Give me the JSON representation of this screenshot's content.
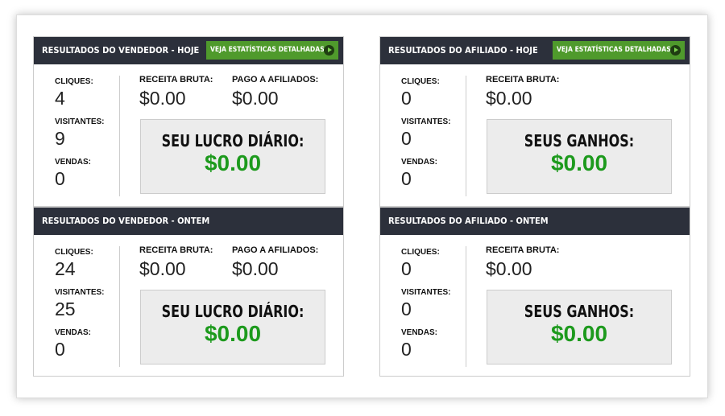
{
  "panels": [
    {
      "title": "RESULTADOS DO VENDEDOR - HOJE",
      "button": "VEJA ESTATÍSTICAS DETALHADAS",
      "stats": [
        {
          "label": "CLIQUES:",
          "value": "4"
        },
        {
          "label": "VISITANTES:",
          "value": "9"
        },
        {
          "label": "VENDAS:",
          "value": "0"
        }
      ],
      "revenue": [
        {
          "label": "RECEITA BRUTA:",
          "value": "$0.00"
        },
        {
          "label": "PAGO A AFILIADOS:",
          "value": "$0.00"
        }
      ],
      "box": {
        "label": "SEU LUCRO DIÁRIO:",
        "value": "$0.00"
      }
    },
    {
      "title": "RESULTADOS DO AFILIADO - HOJE",
      "button": "VEJA ESTATÍSTICAS DETALHADAS",
      "stats": [
        {
          "label": "CLIQUES:",
          "value": "0"
        },
        {
          "label": "VISITANTES:",
          "value": "0"
        },
        {
          "label": "VENDAS:",
          "value": "0"
        }
      ],
      "revenue": [
        {
          "label": "RECEITA BRUTA:",
          "value": "$0.00"
        }
      ],
      "box": {
        "label": "SEUS GANHOS:",
        "value": "$0.00"
      }
    },
    {
      "title": "RESULTADOS DO VENDEDOR - ONTEM",
      "stats": [
        {
          "label": "CLIQUES:",
          "value": "24"
        },
        {
          "label": "VISITANTES:",
          "value": "25"
        },
        {
          "label": "VENDAS:",
          "value": "0"
        }
      ],
      "revenue": [
        {
          "label": "RECEITA BRUTA:",
          "value": "$0.00"
        },
        {
          "label": "PAGO A AFILIADOS:",
          "value": "$0.00"
        }
      ],
      "box": {
        "label": "SEU LUCRO DIÁRIO:",
        "value": "$0.00"
      }
    },
    {
      "title": "RESULTADOS DO AFILIADO - ONTEM",
      "stats": [
        {
          "label": "CLIQUES:",
          "value": "0"
        },
        {
          "label": "VISITANTES:",
          "value": "0"
        },
        {
          "label": "VENDAS:",
          "value": "0"
        }
      ],
      "revenue": [
        {
          "label": "RECEITA BRUTA:",
          "value": "$0.00"
        }
      ],
      "box": {
        "label": "SEUS GANHOS:",
        "value": "$0.00"
      }
    }
  ]
}
